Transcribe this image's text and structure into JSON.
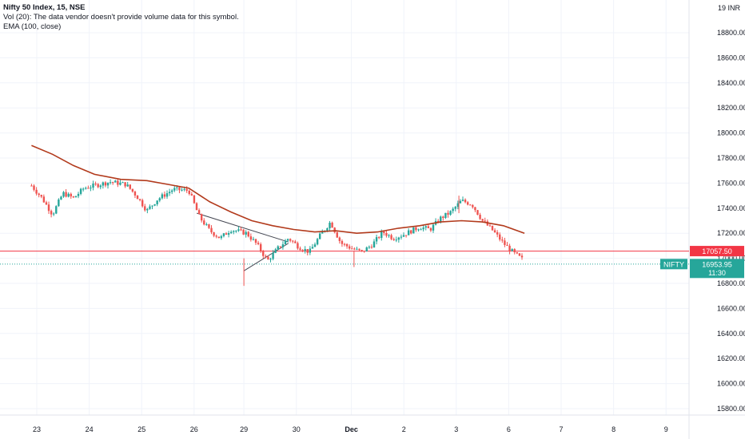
{
  "legend": {
    "title": "Nifty 50 Index, 15, NSE",
    "volume": "Vol (20): The data vendor doesn't provide volume data for this symbol.",
    "ema": "EMA (100, close)"
  },
  "axis": {
    "currency": "INR",
    "y_top_label": "19",
    "y_ticks": [
      "18800.00",
      "18600.00",
      "18400.00",
      "18200.00",
      "18000.00",
      "17800.00",
      "17600.00",
      "17400.00",
      "17200.00",
      "17000.00",
      "16800.00",
      "16600.00",
      "16400.00",
      "16200.00",
      "16000.00",
      "15800.00"
    ]
  },
  "tags": {
    "hline_price": "17057.50",
    "symbol": "NIFTY",
    "last_price": "16953.95",
    "countdown": "11:30"
  },
  "colors": {
    "up": "#26a69a",
    "down": "#ef5350",
    "ema": "#b23a1c",
    "hline": "#f23645",
    "last": "#26a69a",
    "trendline": "#434651"
  },
  "chart_data": {
    "type": "candlestick",
    "title": "Nifty 50 Index, 15, NSE",
    "x_labels": [
      "23",
      "24",
      "25",
      "26",
      "29",
      "30",
      "Dec",
      "2",
      "3",
      "6",
      "7",
      "8",
      "9"
    ],
    "ylim": [
      15700,
      19050
    ],
    "horizontal_line": 17057.5,
    "last_price": 16953.95,
    "close_path": [
      [
        22.8,
        17580
      ],
      [
        23.0,
        17480
      ],
      [
        23.2,
        17350
      ],
      [
        23.4,
        17520
      ],
      [
        23.6,
        17480
      ],
      [
        23.8,
        17560
      ],
      [
        24.0,
        17580
      ],
      [
        24.3,
        17610
      ],
      [
        24.6,
        17590
      ],
      [
        24.8,
        17500
      ],
      [
        25.0,
        17380
      ],
      [
        25.2,
        17470
      ],
      [
        25.5,
        17550
      ],
      [
        25.8,
        17540
      ],
      [
        26.0,
        17330
      ],
      [
        26.2,
        17220
      ],
      [
        26.4,
        17160
      ],
      [
        26.6,
        17230
      ],
      [
        26.9,
        17200
      ],
      [
        27.1,
        17110
      ],
      [
        27.3,
        16980
      ],
      [
        27.5,
        17080
      ],
      [
        27.7,
        17160
      ],
      [
        27.9,
        17090
      ],
      [
        28.1,
        17050
      ],
      [
        28.3,
        17180
      ],
      [
        28.5,
        17290
      ],
      [
        28.7,
        17120
      ],
      [
        28.9,
        17080
      ],
      [
        29.1,
        17050
      ],
      [
        29.3,
        17110
      ],
      [
        29.5,
        17210
      ],
      [
        29.7,
        17160
      ],
      [
        29.9,
        17190
      ],
      [
        30.2,
        17250
      ],
      [
        30.4,
        17230
      ],
      [
        30.6,
        17320
      ],
      [
        30.8,
        17370
      ],
      [
        31.0,
        17460
      ],
      [
        31.2,
        17430
      ],
      [
        31.4,
        17300
      ],
      [
        31.6,
        17220
      ],
      [
        31.8,
        17120
      ],
      [
        32.0,
        17040
      ],
      [
        32.2,
        16980
      ]
    ],
    "ema_path": [
      [
        22.8,
        17900
      ],
      [
        23.2,
        17830
      ],
      [
        23.6,
        17740
      ],
      [
        24.0,
        17670
      ],
      [
        24.5,
        17630
      ],
      [
        25.0,
        17620
      ],
      [
        25.4,
        17590
      ],
      [
        25.8,
        17560
      ],
      [
        26.2,
        17450
      ],
      [
        26.6,
        17370
      ],
      [
        27.0,
        17300
      ],
      [
        27.4,
        17260
      ],
      [
        27.8,
        17230
      ],
      [
        28.2,
        17210
      ],
      [
        28.6,
        17220
      ],
      [
        29.0,
        17200
      ],
      [
        29.4,
        17210
      ],
      [
        29.8,
        17240
      ],
      [
        30.2,
        17260
      ],
      [
        30.6,
        17290
      ],
      [
        31.0,
        17300
      ],
      [
        31.4,
        17290
      ],
      [
        31.8,
        17260
      ],
      [
        32.2,
        17200
      ]
    ],
    "trendlines": [
      {
        "from": [
          25.95,
          17360
        ],
        "to": [
          27.7,
          17130
        ]
      },
      {
        "from": [
          26.85,
          16900
        ],
        "to": [
          27.7,
          17120
        ]
      }
    ],
    "extra_date_positions": {
      "23": 22.9,
      "24": 23.9,
      "25": 24.9,
      "26": 25.9,
      "29": 26.85,
      "30": 27.85,
      "Dec": 28.9,
      "2": 29.9,
      "3": 30.9,
      "6": 31.9,
      "7": 32.9,
      "8": 33.9,
      "9": 34.9
    }
  }
}
